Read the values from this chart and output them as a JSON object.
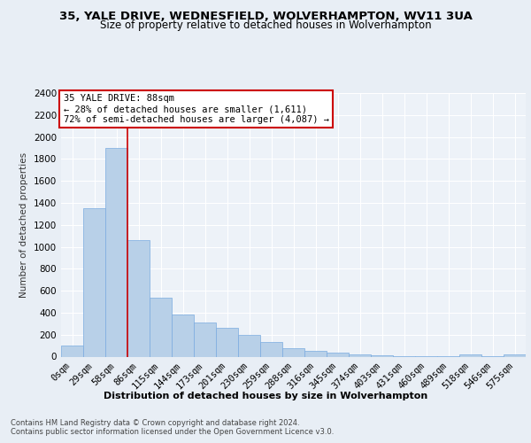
{
  "title1": "35, YALE DRIVE, WEDNESFIELD, WOLVERHAMPTON, WV11 3UA",
  "title2": "Size of property relative to detached houses in Wolverhampton",
  "xlabel": "Distribution of detached houses by size in Wolverhampton",
  "ylabel": "Number of detached properties",
  "annotation_title": "35 YALE DRIVE: 88sqm",
  "annotation_line1": "← 28% of detached houses are smaller (1,611)",
  "annotation_line2": "72% of semi-detached houses are larger (4,087) →",
  "footnote1": "Contains HM Land Registry data © Crown copyright and database right 2024.",
  "footnote2": "Contains public sector information licensed under the Open Government Licence v3.0.",
  "bar_values": [
    100,
    1350,
    1900,
    1060,
    540,
    380,
    310,
    265,
    200,
    130,
    80,
    55,
    40,
    20,
    12,
    8,
    5,
    5,
    20,
    5,
    20
  ],
  "categories": [
    "0sqm",
    "29sqm",
    "58sqm",
    "86sqm",
    "115sqm",
    "144sqm",
    "173sqm",
    "201sqm",
    "230sqm",
    "259sqm",
    "288sqm",
    "316sqm",
    "345sqm",
    "374sqm",
    "403sqm",
    "431sqm",
    "460sqm",
    "489sqm",
    "518sqm",
    "546sqm",
    "575sqm"
  ],
  "bar_color": "#b8d0e8",
  "bar_edge_color": "#7aabe0",
  "vline_x": 2.5,
  "vline_color": "#cc0000",
  "annotation_box_color": "#cc0000",
  "annotation_bg_color": "white",
  "ylim": [
    0,
    2400
  ],
  "yticks": [
    0,
    200,
    400,
    600,
    800,
    1000,
    1200,
    1400,
    1600,
    1800,
    2000,
    2200,
    2400
  ],
  "title1_fontsize": 9.5,
  "title2_fontsize": 8.5,
  "xlabel_fontsize": 8,
  "ylabel_fontsize": 7.5,
  "tick_fontsize": 7.5,
  "ann_fontsize": 7.5,
  "footnote_fontsize": 6,
  "background_color": "#e8eef5",
  "plot_bg_color": "#edf2f8"
}
